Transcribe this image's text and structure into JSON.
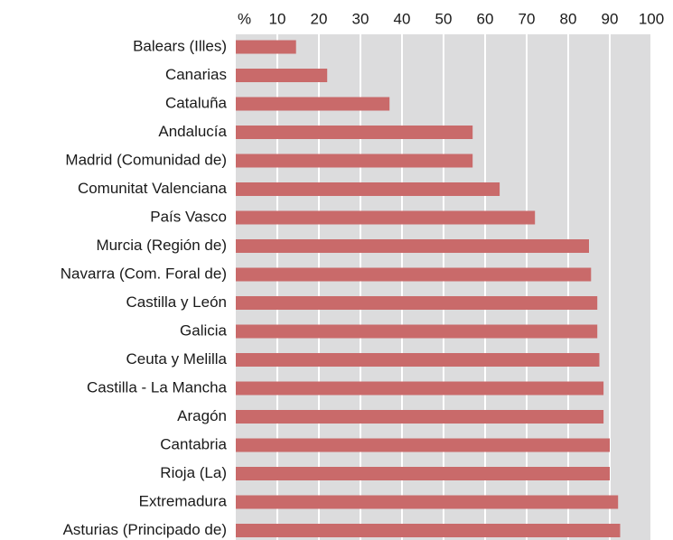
{
  "chart_data": {
    "type": "bar",
    "orientation": "horizontal",
    "categories": [
      "Balears (Illes)",
      "Canarias",
      "Cataluña",
      "Andalucía",
      "Madrid (Comunidad de)",
      "Comunitat Valenciana",
      "País Vasco",
      "Murcia (Región de)",
      "Navarra (Com. Foral de)",
      "Castilla y León",
      "Galicia",
      "Ceuta y Melilla",
      "Castilla - La Mancha",
      "Aragón",
      "Cantabria",
      "Rioja (La)",
      "Extremadura",
      "Asturias (Principado de)"
    ],
    "values": [
      14.5,
      22,
      37,
      57,
      57,
      63.5,
      72,
      85,
      85.5,
      87,
      87,
      87.5,
      88.5,
      88.5,
      90,
      90,
      92,
      92.5
    ],
    "color": "#c96a6a",
    "xlim": [
      0,
      100
    ],
    "xticks": [
      {
        "value": 0,
        "label": "%"
      },
      10,
      20,
      30,
      40,
      50,
      60,
      70,
      80,
      90,
      100
    ],
    "grid": true
  }
}
